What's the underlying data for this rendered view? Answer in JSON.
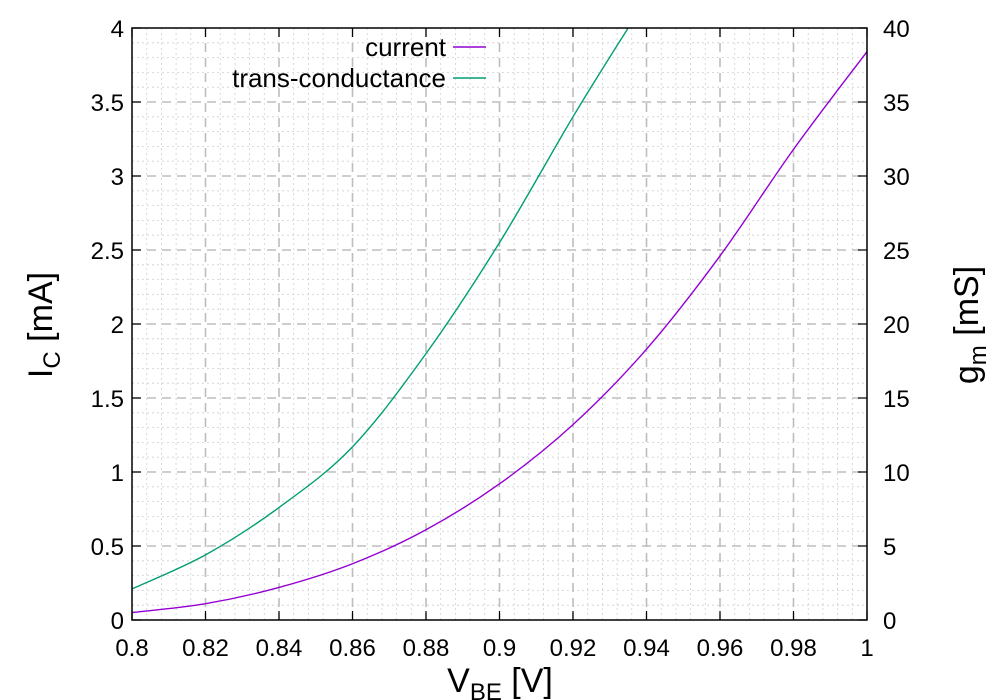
{
  "chart_data": {
    "type": "line",
    "title": "",
    "xlabel": {
      "main": "V",
      "sub": "BE",
      "suffix": " [V]"
    },
    "ylabel_left": {
      "main": "I",
      "sub": "C",
      "suffix": " [mA]"
    },
    "ylabel_right": {
      "main": "g",
      "sub": "m",
      "suffix": " [mS]"
    },
    "xlim": [
      0.8,
      1.0
    ],
    "ylim_left": [
      0,
      4
    ],
    "ylim_right": [
      0,
      40
    ],
    "x_ticks": [
      "0.8",
      "0.82",
      "0.84",
      "0.86",
      "0.88",
      "0.9",
      "0.92",
      "0.94",
      "0.96",
      "0.98",
      "1"
    ],
    "y_left_ticks": [
      "0",
      "0.5",
      "1",
      "1.5",
      "2",
      "2.5",
      "3",
      "3.5",
      "4"
    ],
    "y_right_ticks": [
      "0",
      "5",
      "10",
      "15",
      "20",
      "25",
      "30",
      "35",
      "40"
    ],
    "grid": true,
    "legend": "top-center",
    "series": [
      {
        "name": "current",
        "axis": "left",
        "color": "#9400d3",
        "x": [
          0.8,
          0.82,
          0.84,
          0.86,
          0.88,
          0.9,
          0.92,
          0.94,
          0.96,
          0.98,
          1.0
        ],
        "y": [
          0.05,
          0.11,
          0.22,
          0.38,
          0.61,
          0.92,
          1.32,
          1.83,
          2.46,
          3.18,
          3.84
        ]
      },
      {
        "name": "trans-conductance",
        "axis": "right",
        "color": "#009e73",
        "x": [
          0.8,
          0.82,
          0.84,
          0.86,
          0.88,
          0.9,
          0.92,
          0.935
        ],
        "y": [
          2.1,
          4.4,
          7.6,
          11.7,
          18.0,
          25.5,
          34.0,
          40.0
        ]
      }
    ]
  }
}
